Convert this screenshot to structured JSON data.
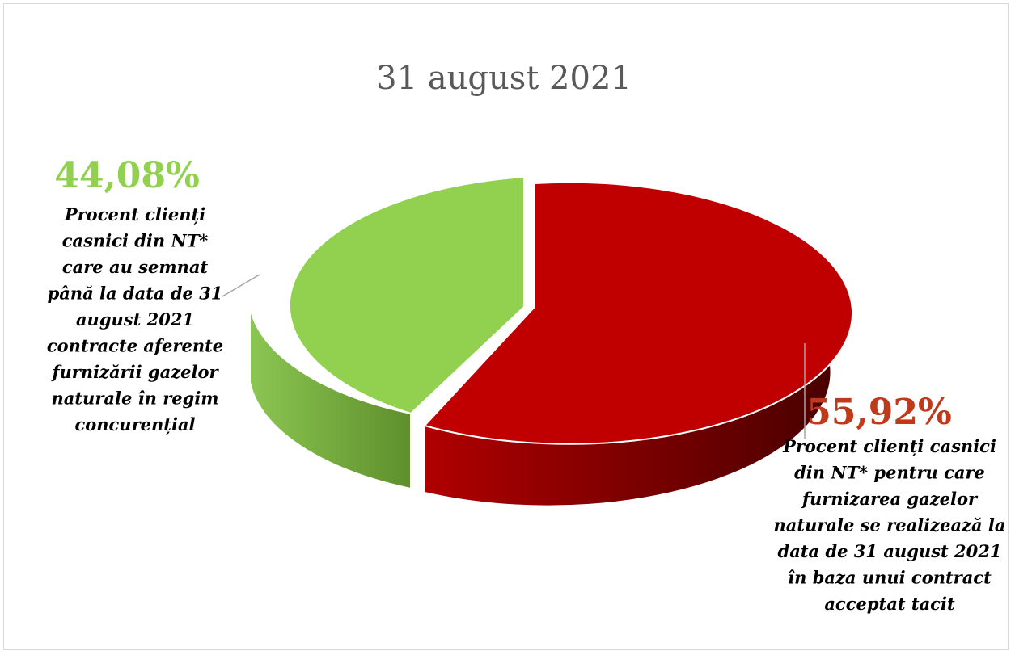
{
  "chart_data": {
    "type": "pie",
    "title": "31 august 2021",
    "style": "3d-exploded",
    "slices": [
      {
        "label": "Procent clienți casnici din NT* care au semnat până la data de 31 august 2021 contracte aferente furnizării gazelor naturale în regim concurențial",
        "value": 44.08,
        "value_label": "44,08%",
        "color_top": "#92d050",
        "color_side": "#70a038",
        "label_lines": [
          "Procent clienți",
          "casnici din NT*",
          "care au semnat",
          "până la data de 31",
          "august 2021",
          "contracte aferente",
          "furnizării gazelor",
          "naturale în regim",
          "concurențial"
        ]
      },
      {
        "label": "Procent clienți casnici din NT* pentru care furnizarea gazelor naturale se realizează la data de 31 august 2021 în baza unui contract acceptat tacit",
        "value": 55.92,
        "value_label": "55,92%",
        "color_top": "#c00000",
        "color_side": "#7a0000",
        "label_lines": [
          "Procent clienți casnici",
          "din NT* pentru care",
          "furnizarea gazelor",
          "naturale se realizează la",
          "data de 31 august 2021",
          "în baza unui contract",
          "acceptat tacit"
        ]
      }
    ]
  }
}
